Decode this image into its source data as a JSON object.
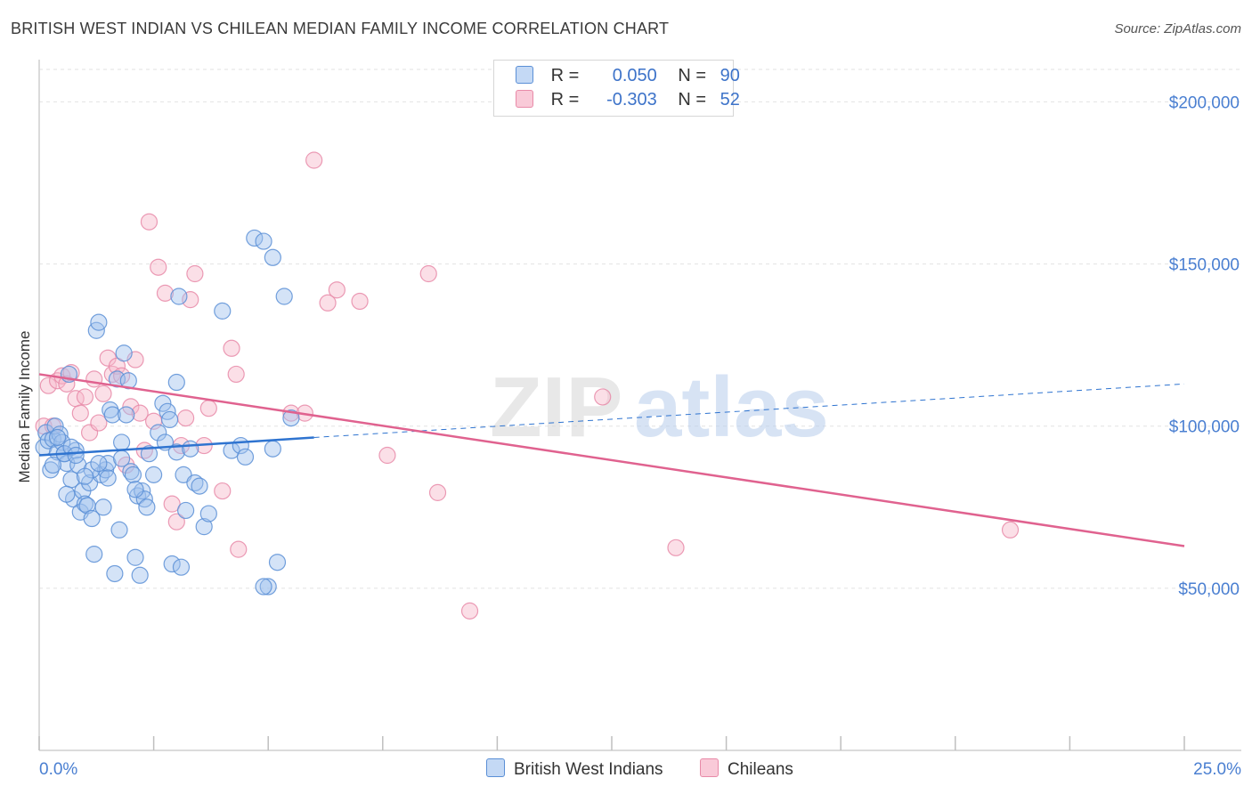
{
  "title": "BRITISH WEST INDIAN VS CHILEAN MEDIAN FAMILY INCOME CORRELATION CHART",
  "source": "Source: ZipAtlas.com",
  "watermark": {
    "zip": "ZIP",
    "atlas": "atlas"
  },
  "legend": {
    "rows": [
      {
        "r_label": "R =",
        "r_value": "0.050",
        "n_label": "N =",
        "n_value": "90"
      },
      {
        "r_label": "R =",
        "r_value": "-0.303",
        "n_label": "N =",
        "n_value": "52"
      }
    ]
  },
  "bottom_legend": {
    "series_a": "British West Indians",
    "series_b": "Chileans"
  },
  "colors": {
    "blue_fill": "#9fc1ee",
    "blue_stroke": "#5a8fd6",
    "blue_line": "#2f74d0",
    "pink_fill": "#f6b7ca",
    "pink_stroke": "#e88aa8",
    "pink_line": "#e0628f",
    "tick_text": "#4a7fd1"
  },
  "chart_data": {
    "type": "scatter",
    "title": "BRITISH WEST INDIAN VS CHILEAN MEDIAN FAMILY INCOME CORRELATION CHART",
    "xlabel": "",
    "ylabel": "Median Family Income",
    "xlim": [
      0,
      25
    ],
    "ylim": [
      0,
      210000
    ],
    "x_tick_labels": [
      "0.0%",
      "25.0%"
    ],
    "y_ticks": [
      50000,
      100000,
      150000,
      200000
    ],
    "y_tick_labels": [
      "$50,000",
      "$100,000",
      "$150,000",
      "$200,000"
    ],
    "series": [
      {
        "name": "British West Indians",
        "R": 0.05,
        "N": 90,
        "trend": {
          "x": [
            0,
            6
          ],
          "y": [
            91000,
            96500
          ],
          "dashed_to_x": 25,
          "dashed_end_y": 113000
        },
        "points": [
          [
            0.1,
            93500
          ],
          [
            0.15,
            98000
          ],
          [
            0.2,
            95500
          ],
          [
            0.25,
            86500
          ],
          [
            0.3,
            96000
          ],
          [
            0.35,
            100000
          ],
          [
            0.4,
            92000
          ],
          [
            0.45,
            97500
          ],
          [
            0.5,
            95000
          ],
          [
            0.55,
            91500
          ],
          [
            0.6,
            88500
          ],
          [
            0.65,
            116000
          ],
          [
            0.7,
            83500
          ],
          [
            0.75,
            77500
          ],
          [
            0.8,
            92500
          ],
          [
            0.85,
            88000
          ],
          [
            0.9,
            73500
          ],
          [
            0.95,
            80000
          ],
          [
            1.0,
            76000
          ],
          [
            1.05,
            75500
          ],
          [
            1.1,
            82500
          ],
          [
            1.15,
            71500
          ],
          [
            1.2,
            60500
          ],
          [
            1.25,
            129500
          ],
          [
            1.3,
            132000
          ],
          [
            1.35,
            85000
          ],
          [
            1.4,
            75000
          ],
          [
            1.45,
            86500
          ],
          [
            1.5,
            88500
          ],
          [
            1.55,
            105000
          ],
          [
            1.6,
            103500
          ],
          [
            1.65,
            54500
          ],
          [
            1.7,
            114500
          ],
          [
            1.75,
            68000
          ],
          [
            1.8,
            95000
          ],
          [
            1.85,
            122500
          ],
          [
            1.9,
            103500
          ],
          [
            1.95,
            114000
          ],
          [
            2.0,
            86000
          ],
          [
            2.05,
            85000
          ],
          [
            2.1,
            59500
          ],
          [
            2.15,
            78500
          ],
          [
            2.2,
            54000
          ],
          [
            2.25,
            80000
          ],
          [
            2.3,
            77500
          ],
          [
            2.35,
            75000
          ],
          [
            2.4,
            91500
          ],
          [
            2.5,
            85000
          ],
          [
            2.6,
            98000
          ],
          [
            2.7,
            107000
          ],
          [
            2.75,
            95000
          ],
          [
            2.8,
            104500
          ],
          [
            2.85,
            102000
          ],
          [
            2.9,
            57500
          ],
          [
            3.0,
            92000
          ],
          [
            3.05,
            140000
          ],
          [
            3.1,
            56500
          ],
          [
            3.15,
            85000
          ],
          [
            3.2,
            74000
          ],
          [
            3.3,
            93000
          ],
          [
            3.4,
            82500
          ],
          [
            3.5,
            81500
          ],
          [
            3.6,
            69000
          ],
          [
            3.7,
            73000
          ],
          [
            4.0,
            135500
          ],
          [
            4.2,
            92500
          ],
          [
            4.4,
            94000
          ],
          [
            4.5,
            90500
          ],
          [
            4.7,
            158000
          ],
          [
            4.9,
            157000
          ],
          [
            5.1,
            152000
          ],
          [
            5.35,
            140000
          ],
          [
            0.4,
            96500
          ],
          [
            0.55,
            91500
          ],
          [
            0.7,
            93500
          ],
          [
            1.15,
            86500
          ],
          [
            1.3,
            88500
          ],
          [
            2.1,
            80500
          ],
          [
            3.0,
            113500
          ],
          [
            5.0,
            50500
          ],
          [
            0.3,
            88000
          ],
          [
            0.6,
            79000
          ],
          [
            0.8,
            91000
          ],
          [
            1.0,
            84500
          ],
          [
            1.5,
            84000
          ],
          [
            1.8,
            90000
          ],
          [
            4.9,
            50500
          ],
          [
            5.1,
            93000
          ],
          [
            5.2,
            58000
          ],
          [
            5.5,
            102500
          ]
        ]
      },
      {
        "name": "Chileans",
        "R": -0.303,
        "N": 52,
        "trend": {
          "x": [
            0,
            25
          ],
          "y": [
            116000,
            63000
          ]
        },
        "points": [
          [
            0.1,
            100000
          ],
          [
            0.2,
            112500
          ],
          [
            0.3,
            100000
          ],
          [
            0.4,
            114000
          ],
          [
            0.5,
            115500
          ],
          [
            0.6,
            113000
          ],
          [
            0.7,
            116500
          ],
          [
            0.8,
            108500
          ],
          [
            0.9,
            104000
          ],
          [
            1.0,
            109000
          ],
          [
            1.1,
            98000
          ],
          [
            1.2,
            114500
          ],
          [
            1.3,
            101000
          ],
          [
            1.4,
            110000
          ],
          [
            1.5,
            121000
          ],
          [
            1.6,
            116000
          ],
          [
            1.7,
            118500
          ],
          [
            1.8,
            115500
          ],
          [
            1.9,
            88000
          ],
          [
            2.0,
            106000
          ],
          [
            2.1,
            120500
          ],
          [
            2.2,
            104000
          ],
          [
            2.3,
            92500
          ],
          [
            2.4,
            163000
          ],
          [
            2.5,
            101500
          ],
          [
            2.6,
            149000
          ],
          [
            2.75,
            141000
          ],
          [
            2.9,
            76000
          ],
          [
            3.0,
            70500
          ],
          [
            3.1,
            94000
          ],
          [
            3.2,
            102500
          ],
          [
            3.3,
            139000
          ],
          [
            3.4,
            147000
          ],
          [
            3.6,
            94000
          ],
          [
            3.7,
            105500
          ],
          [
            4.0,
            80000
          ],
          [
            4.2,
            124000
          ],
          [
            4.3,
            116000
          ],
          [
            4.35,
            62000
          ],
          [
            5.5,
            104000
          ],
          [
            5.8,
            104000
          ],
          [
            6.0,
            182000
          ],
          [
            6.3,
            138000
          ],
          [
            6.5,
            142000
          ],
          [
            7.0,
            138500
          ],
          [
            7.6,
            91000
          ],
          [
            8.5,
            147000
          ],
          [
            8.7,
            79500
          ],
          [
            9.4,
            43000
          ],
          [
            12.3,
            109000
          ],
          [
            13.9,
            62500
          ],
          [
            21.2,
            68000
          ]
        ]
      }
    ]
  }
}
